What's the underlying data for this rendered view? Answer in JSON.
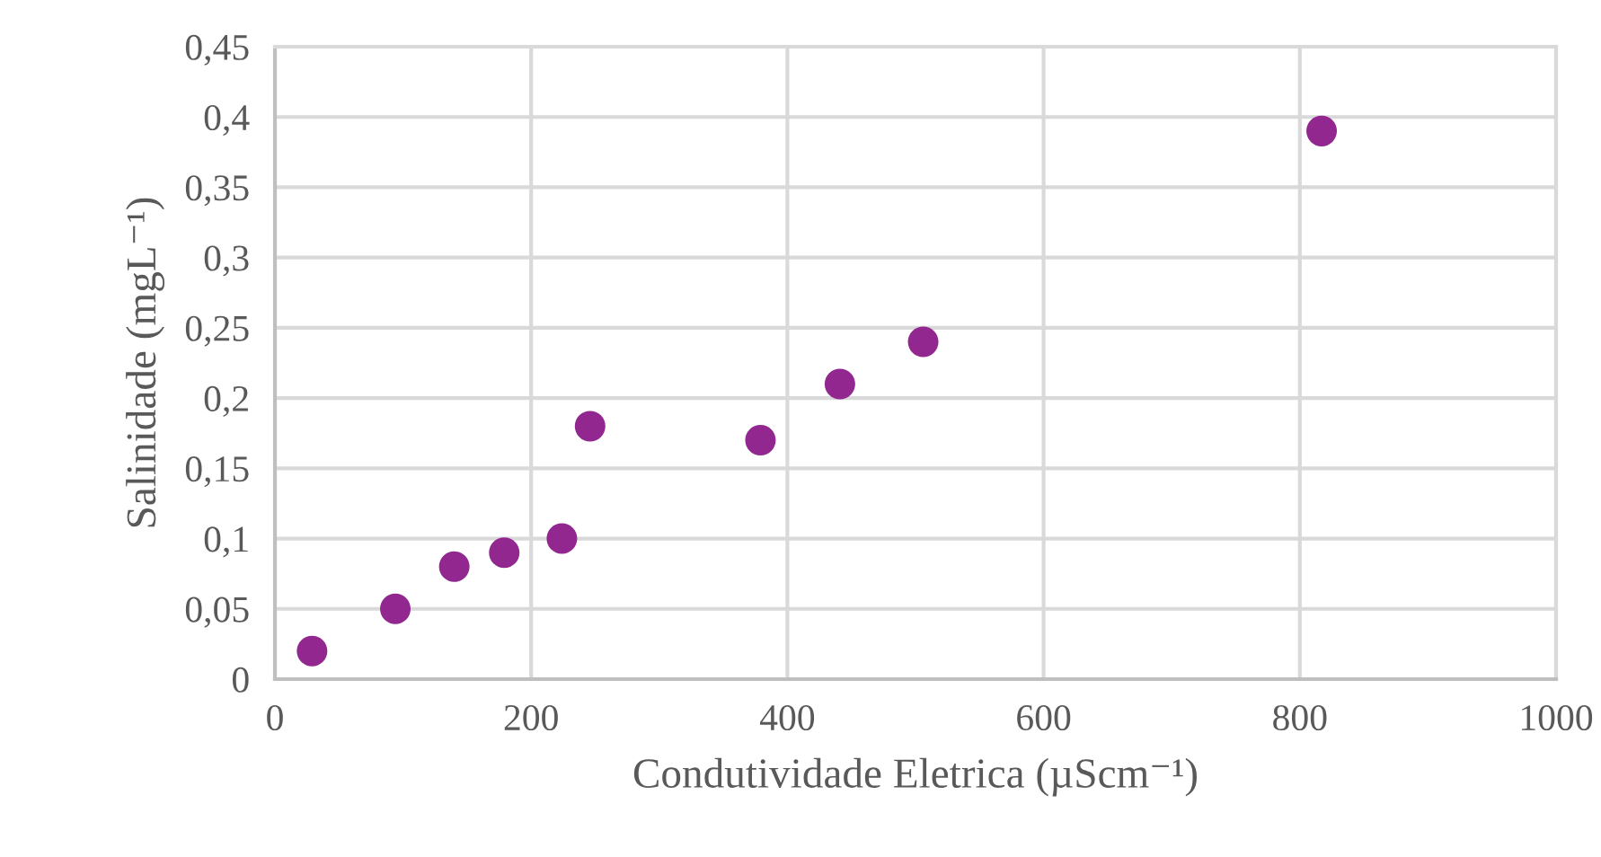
{
  "chart_data": {
    "type": "scatter",
    "xlabel": "Condutividade Eletrica (µScm⁻¹)",
    "ylabel": "Salinidade (mgL⁻¹)",
    "x": [
      29,
      94,
      140,
      179,
      224,
      246,
      379,
      441,
      506,
      817
    ],
    "series": [
      {
        "color": "#92278f",
        "values": [
          0.02,
          0.05,
          0.08,
          0.09,
          0.1,
          0.18,
          0.17,
          0.21,
          0.24,
          0.39
        ]
      }
    ],
    "xlim": [
      0,
      1000
    ],
    "xticks": [
      0,
      200,
      400,
      600,
      800,
      1000
    ],
    "ylim": [
      0,
      0.45
    ],
    "yticks": [
      {
        "value": 0,
        "label": "0"
      },
      {
        "value": 0.05,
        "label": "0,05"
      },
      {
        "value": 0.1,
        "label": "0,1"
      },
      {
        "value": 0.15,
        "label": "0,15"
      },
      {
        "value": 0.2,
        "label": "0,2"
      },
      {
        "value": 0.25,
        "label": "0,25"
      },
      {
        "value": 0.3,
        "label": "0,3"
      },
      {
        "value": 0.35,
        "label": "0,35"
      },
      {
        "value": 0.4,
        "label": "0,4"
      },
      {
        "value": 0.45,
        "label": "0,45"
      }
    ],
    "grid": true,
    "marker": "circle",
    "legend": false
  }
}
